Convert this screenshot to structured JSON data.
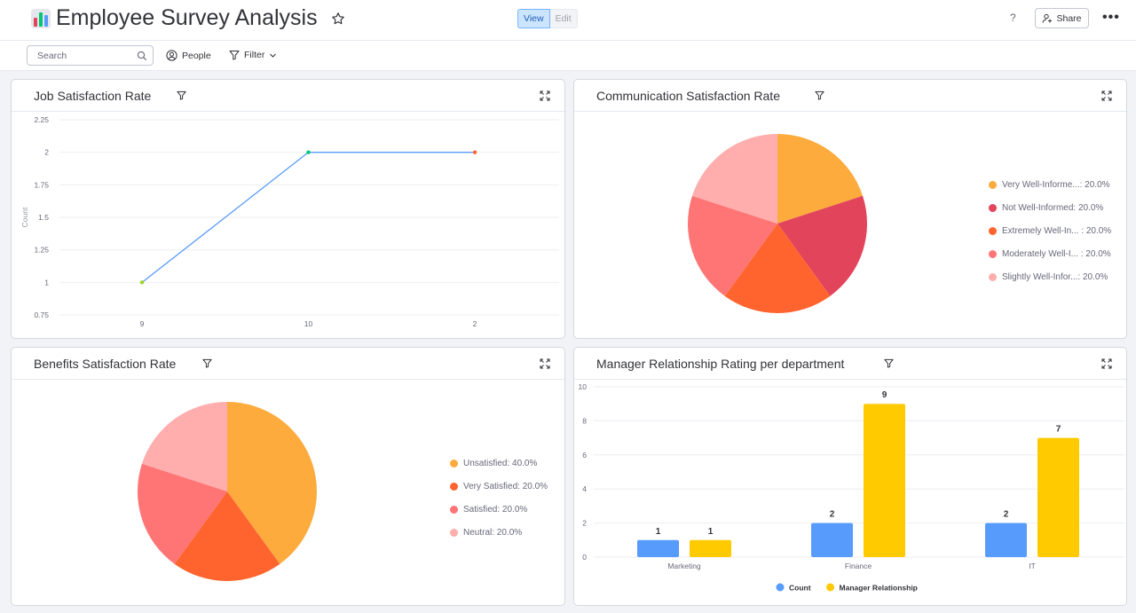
{
  "header": {
    "title": "Employee Survey Analysis",
    "view_label": "View",
    "edit_label": "Edit",
    "help_label": "?",
    "share_label": "Share"
  },
  "toolbar": {
    "search_placeholder": "Search",
    "people_label": "People",
    "filter_label": "Filter"
  },
  "widgets": {
    "job": {
      "title": "Job Satisfaction Rate"
    },
    "communication": {
      "title": "Communication Satisfaction Rate"
    },
    "benefits": {
      "title": "Benefits Satisfaction Rate"
    },
    "manager": {
      "title": "Manager Relationship Rating per department"
    }
  },
  "chart_data": [
    {
      "type": "line",
      "title": "Job Satisfaction Rate",
      "categories": [
        "9",
        "10",
        "2"
      ],
      "series": [
        {
          "values": [
            1,
            2,
            2
          ]
        }
      ],
      "ylabel": "Count",
      "ylim": [
        0.75,
        2.25
      ],
      "yticks": [
        "2.25",
        "2",
        "1.75",
        "1.5",
        "1.25",
        "1",
        "0.75"
      ],
      "grid": true,
      "line_color": "#579bfc",
      "point_colors": [
        "#9cd326",
        "#00c875",
        "#ff642e"
      ]
    },
    {
      "type": "pie",
      "title": "Communication Satisfaction Rate",
      "legend_position": "right",
      "slices": [
        {
          "label": "Very Well-Informe...: 20.0%",
          "value": 20.0,
          "color": "#fdab3d"
        },
        {
          "label": "Not Well-Informed: 20.0%",
          "value": 20.0,
          "color": "#e2445c"
        },
        {
          "label": "Extremely Well-In... : 20.0%",
          "value": 20.0,
          "color": "#ff642e"
        },
        {
          "label": "Moderately Well-I... : 20.0%",
          "value": 20.0,
          "color": "#ff7575"
        },
        {
          "label": "Slightly Well-Infor...: 20.0%",
          "value": 20.0,
          "color": "#ffadad"
        }
      ]
    },
    {
      "type": "pie",
      "title": "Benefits Satisfaction Rate",
      "legend_position": "right",
      "slices": [
        {
          "label": "Unsatisfied: 40.0%",
          "value": 40.0,
          "color": "#fdab3d"
        },
        {
          "label": "Very Satisfied: 20.0%",
          "value": 20.0,
          "color": "#ff642e"
        },
        {
          "label": "Satisfied: 20.0%",
          "value": 20.0,
          "color": "#ff7575"
        },
        {
          "label": "Neutral: 20.0%",
          "value": 20.0,
          "color": "#ffadad"
        }
      ]
    },
    {
      "type": "bar",
      "title": "Manager Relationship Rating per department",
      "categories": [
        "Marketing",
        "Finance",
        "IT"
      ],
      "series": [
        {
          "name": "Count",
          "values": [
            1,
            2,
            2
          ],
          "color": "#579bfc"
        },
        {
          "name": "Manager Relationship",
          "values": [
            1,
            9,
            7
          ],
          "color": "#ffcb00"
        }
      ],
      "ylim": [
        0,
        10
      ],
      "yticks": [
        "10",
        "8",
        "6",
        "4",
        "2",
        "0"
      ],
      "legend_position": "bottom"
    }
  ]
}
